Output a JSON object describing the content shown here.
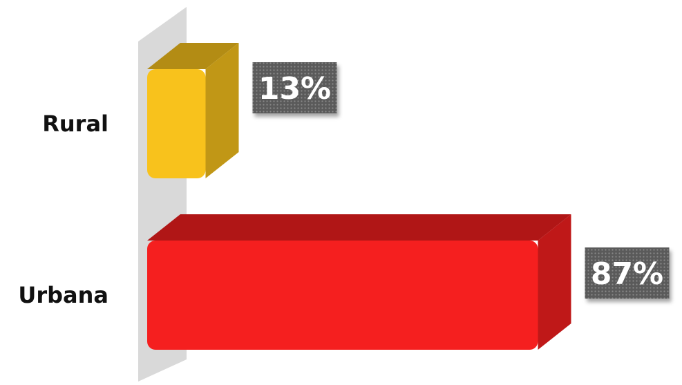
{
  "chart_data": {
    "type": "bar",
    "orientation": "horizontal",
    "style": "3d",
    "categories": [
      "Rural",
      "Urbana"
    ],
    "values": [
      13,
      87
    ],
    "value_labels": [
      "13%",
      "87%"
    ],
    "unit": "%",
    "xlim": [
      0,
      100
    ],
    "title": "",
    "xlabel": "",
    "ylabel": "",
    "grid": false,
    "legend": "none",
    "colors": [
      "#F8C21C",
      "#F51F1F"
    ]
  }
}
